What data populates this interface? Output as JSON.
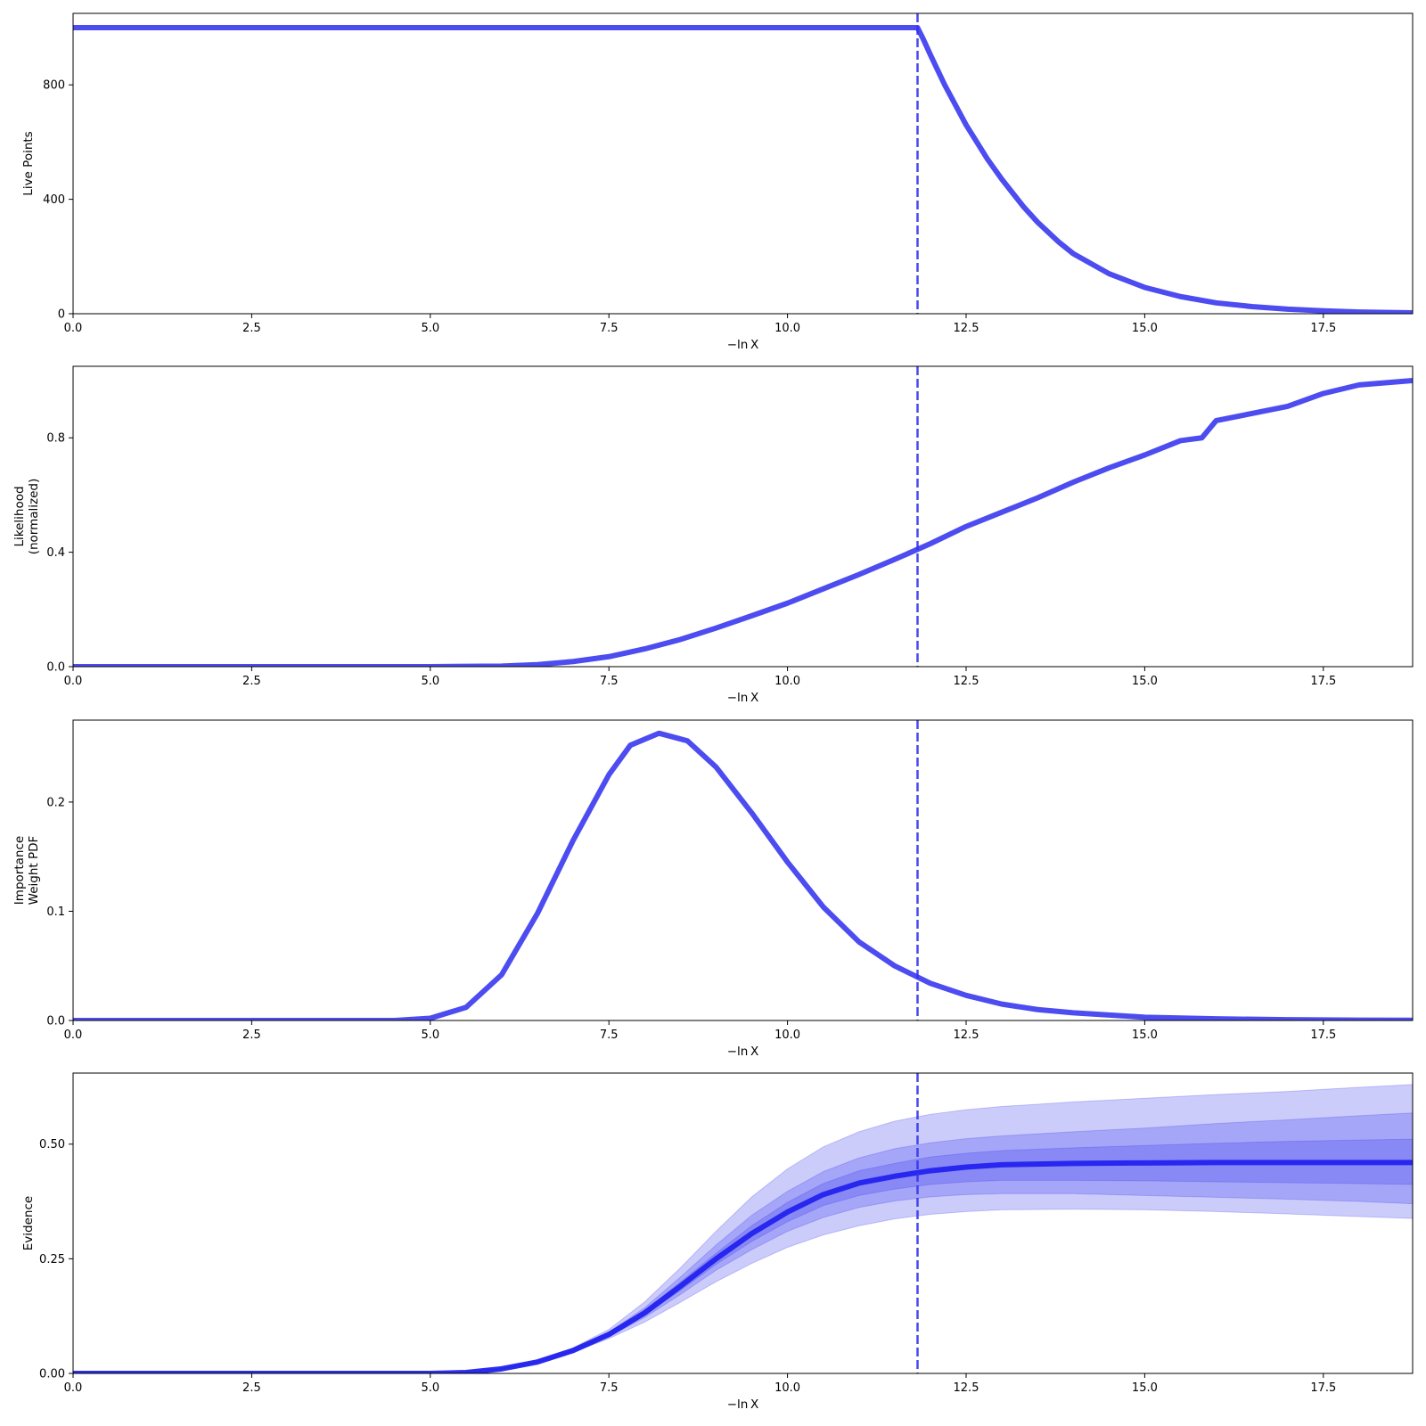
{
  "colors": {
    "line": "#3333ee",
    "evidence_line": "#2222ee",
    "band": "#3333ee",
    "axes": "#000000",
    "background": "#ffffff"
  },
  "chart_data": [
    {
      "id": "live",
      "type": "line",
      "xlabel": "−ln X",
      "ylabel": [
        "Live Points"
      ],
      "xlim": [
        0,
        18.75
      ],
      "ylim": [
        0,
        1050
      ],
      "xticks": [
        "0.0",
        "2.5",
        "5.0",
        "7.5",
        "10.0",
        "12.5",
        "15.0",
        "17.5"
      ],
      "xtick_values": [
        0,
        2.5,
        5,
        7.5,
        10,
        12.5,
        15,
        17.5
      ],
      "yticks": [
        "0",
        "400",
        "800"
      ],
      "ytick_values": [
        0,
        400,
        800
      ],
      "vline_x": 11.82,
      "series": [
        {
          "x": [
            0,
            11.82,
            11.9,
            12.0,
            12.2,
            12.5,
            12.8,
            13.0,
            13.3,
            13.5,
            13.8,
            14.0,
            14.5,
            15.0,
            15.5,
            16.0,
            16.5,
            17.0,
            17.5,
            18.0,
            18.75
          ],
          "y": [
            1000,
            1000,
            960,
            905,
            800,
            660,
            540,
            470,
            375,
            320,
            250,
            210,
            140,
            92,
            60,
            38,
            25,
            16,
            10,
            6,
            3
          ]
        }
      ]
    },
    {
      "id": "likelihood",
      "type": "line",
      "xlabel": "−ln X",
      "ylabel": [
        "Likelihood",
        "(normalized)"
      ],
      "xlim": [
        0,
        18.75
      ],
      "ylim": [
        0,
        1.05
      ],
      "xticks": [
        "0.0",
        "2.5",
        "5.0",
        "7.5",
        "10.0",
        "12.5",
        "15.0",
        "17.5"
      ],
      "xtick_values": [
        0,
        2.5,
        5,
        7.5,
        10,
        12.5,
        15,
        17.5
      ],
      "yticks": [
        "0.0",
        "0.4",
        "0.8"
      ],
      "ytick_values": [
        0,
        0.4,
        0.8
      ],
      "vline_x": 11.82,
      "series": [
        {
          "x": [
            0,
            5.0,
            6.0,
            6.5,
            7.0,
            7.5,
            8.0,
            8.5,
            9.0,
            9.5,
            10.0,
            10.5,
            11.0,
            11.5,
            12.0,
            12.5,
            13.0,
            13.5,
            14.0,
            14.5,
            15.0,
            15.5,
            15.8,
            16.0,
            16.5,
            17.0,
            17.5,
            18.0,
            18.75
          ],
          "y": [
            0,
            0,
            0.002,
            0.007,
            0.018,
            0.035,
            0.062,
            0.095,
            0.135,
            0.178,
            0.222,
            0.272,
            0.322,
            0.375,
            0.43,
            0.49,
            0.54,
            0.59,
            0.645,
            0.695,
            0.74,
            0.79,
            0.8,
            0.86,
            0.885,
            0.91,
            0.955,
            0.985,
            1.0
          ]
        }
      ]
    },
    {
      "id": "importance",
      "type": "line",
      "xlabel": "−ln X",
      "ylabel": [
        "Importance",
        "Weight PDF"
      ],
      "xlim": [
        0,
        18.75
      ],
      "ylim": [
        0,
        0.275
      ],
      "xticks": [
        "0.0",
        "2.5",
        "5.0",
        "7.5",
        "10.0",
        "12.5",
        "15.0",
        "17.5"
      ],
      "xtick_values": [
        0,
        2.5,
        5,
        7.5,
        10,
        12.5,
        15,
        17.5
      ],
      "yticks": [
        "0.0",
        "0.1",
        "0.2"
      ],
      "ytick_values": [
        0,
        0.1,
        0.2
      ],
      "vline_x": 11.82,
      "series": [
        {
          "x": [
            0,
            4.5,
            5.0,
            5.5,
            6.0,
            6.5,
            7.0,
            7.5,
            7.8,
            8.2,
            8.6,
            9.0,
            9.5,
            10.0,
            10.5,
            11.0,
            11.5,
            12.0,
            12.5,
            13.0,
            13.5,
            14.0,
            15.0,
            16.0,
            17.0,
            18.0,
            18.75
          ],
          "y": [
            0,
            0,
            0.002,
            0.012,
            0.042,
            0.098,
            0.165,
            0.225,
            0.252,
            0.263,
            0.256,
            0.232,
            0.19,
            0.145,
            0.104,
            0.072,
            0.05,
            0.034,
            0.023,
            0.015,
            0.01,
            0.007,
            0.003,
            0.0015,
            0.0007,
            0.0003,
            0.0002
          ]
        }
      ]
    },
    {
      "id": "evidence",
      "type": "area",
      "xlabel": "−ln X",
      "ylabel": [
        "Evidence"
      ],
      "xlim": [
        0,
        18.75
      ],
      "ylim": [
        0,
        0.655
      ],
      "xticks": [
        "0.0",
        "2.5",
        "5.0",
        "7.5",
        "10.0",
        "12.5",
        "15.0",
        "17.5"
      ],
      "xtick_values": [
        0,
        2.5,
        5,
        7.5,
        10,
        12.5,
        15,
        17.5
      ],
      "yticks": [
        "0.00",
        "0.25",
        "0.50"
      ],
      "ytick_values": [
        0,
        0.25,
        0.5
      ],
      "vline_x": 11.82,
      "x": [
        0,
        5.0,
        5.5,
        6.0,
        6.5,
        7.0,
        7.5,
        8.0,
        8.5,
        9.0,
        9.5,
        10.0,
        10.5,
        11.0,
        11.5,
        12.0,
        12.5,
        13.0,
        14.0,
        15.0,
        16.0,
        17.0,
        18.0,
        18.75
      ],
      "median": [
        0,
        0,
        0.002,
        0.01,
        0.025,
        0.05,
        0.085,
        0.132,
        0.19,
        0.25,
        0.305,
        0.352,
        0.39,
        0.415,
        0.43,
        0.442,
        0.45,
        0.455,
        0.458,
        0.459,
        0.46,
        0.46,
        0.46,
        0.46
      ],
      "bands": [
        {
          "lower": [
            0,
            0,
            0.002,
            0.009,
            0.023,
            0.046,
            0.076,
            0.112,
            0.155,
            0.2,
            0.24,
            0.275,
            0.302,
            0.322,
            0.337,
            0.347,
            0.353,
            0.357,
            0.358,
            0.357,
            0.353,
            0.348,
            0.342,
            0.338
          ],
          "upper": [
            0,
            0,
            0.002,
            0.011,
            0.028,
            0.056,
            0.096,
            0.156,
            0.23,
            0.31,
            0.385,
            0.446,
            0.494,
            0.527,
            0.55,
            0.565,
            0.575,
            0.582,
            0.592,
            0.6,
            0.608,
            0.615,
            0.624,
            0.63
          ]
        },
        {
          "lower": [
            0,
            0,
            0.002,
            0.0095,
            0.024,
            0.048,
            0.08,
            0.122,
            0.172,
            0.225,
            0.27,
            0.31,
            0.34,
            0.362,
            0.376,
            0.385,
            0.39,
            0.392,
            0.392,
            0.388,
            0.384,
            0.38,
            0.375,
            0.37
          ],
          "upper": [
            0,
            0,
            0.002,
            0.0105,
            0.0265,
            0.053,
            0.09,
            0.143,
            0.21,
            0.28,
            0.345,
            0.397,
            0.44,
            0.47,
            0.49,
            0.503,
            0.512,
            0.518,
            0.527,
            0.535,
            0.545,
            0.553,
            0.562,
            0.568
          ]
        },
        {
          "lower": [
            0,
            0,
            0.002,
            0.0098,
            0.0245,
            0.049,
            0.082,
            0.127,
            0.181,
            0.238,
            0.288,
            0.331,
            0.366,
            0.388,
            0.402,
            0.412,
            0.418,
            0.421,
            0.421,
            0.42,
            0.418,
            0.416,
            0.414,
            0.412
          ],
          "upper": [
            0,
            0,
            0.002,
            0.0102,
            0.0255,
            0.051,
            0.088,
            0.137,
            0.199,
            0.262,
            0.322,
            0.373,
            0.414,
            0.442,
            0.458,
            0.472,
            0.48,
            0.486,
            0.492,
            0.497,
            0.502,
            0.506,
            0.509,
            0.511
          ]
        }
      ]
    }
  ]
}
